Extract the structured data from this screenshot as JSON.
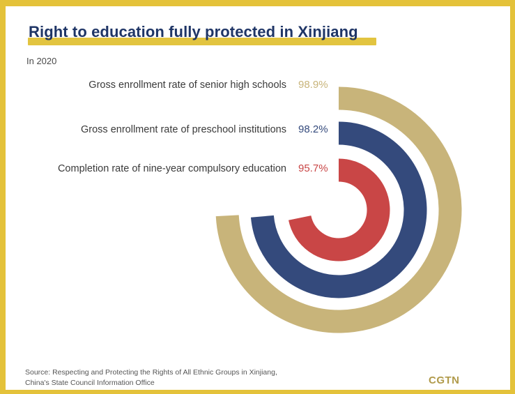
{
  "header": {
    "title": "Right to education fully protected in Xinjiang",
    "subtitle": "In 2020"
  },
  "footer": {
    "source_line1": "Source: Respecting and Protecting the Rights of All Ethnic Groups in Xinjiang,",
    "source_line2": "China's State Council Information Office",
    "logo": "CGTN"
  },
  "chart_data": {
    "type": "radial-bar",
    "unit": "%",
    "max": 100,
    "series": [
      {
        "name": "Gross enrollment rate of senior high schools",
        "value": 98.9,
        "label": "98.9%",
        "color": "#c8b47a"
      },
      {
        "name": "Gross enrollment rate of preschool institutions",
        "value": 98.2,
        "label": "98.2%",
        "color": "#344a7c"
      },
      {
        "name": "Completion rate of nine-year compulsory education",
        "value": 95.7,
        "label": "95.7%",
        "color": "#c94646"
      }
    ]
  }
}
